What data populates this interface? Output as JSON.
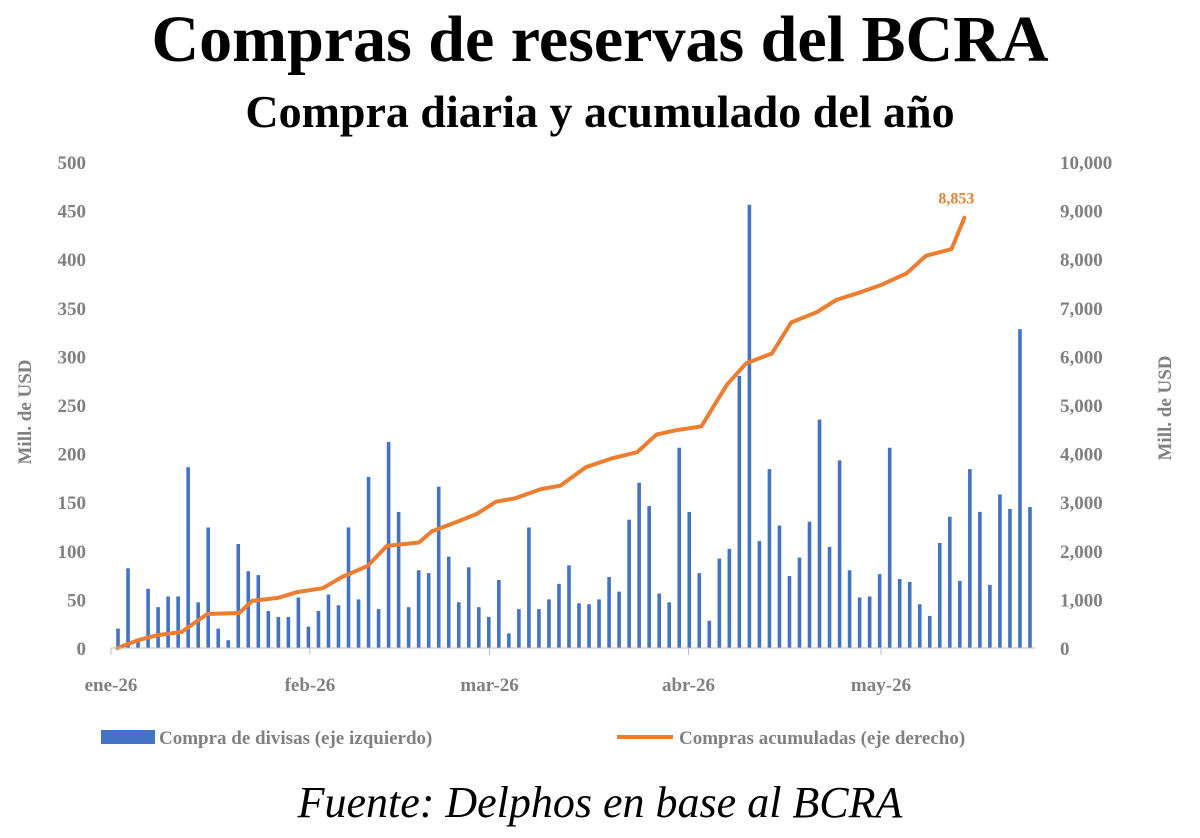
{
  "colors": {
    "bar": "#4472c4",
    "line": "#ed7d31",
    "axis_text": "#808080"
  },
  "chart_data": {
    "type": "bar",
    "title": "Compras de reservas del BCRA",
    "subtitle": "Compra diaria y acumulado del año",
    "source": "Fuente: Delphos en base al BCRA",
    "ylabel": "Mill. de USD",
    "y2label": "Mill. de USD",
    "ylim": [
      0,
      500
    ],
    "y2lim": [
      0,
      10000
    ],
    "y_ticks": [
      "0",
      "50",
      "100",
      "150",
      "200",
      "250",
      "300",
      "350",
      "400",
      "450",
      "500"
    ],
    "y2_ticks": [
      "0",
      "1,000",
      "2,000",
      "3,000",
      "4,000",
      "5,000",
      "6,000",
      "7,000",
      "8,000",
      "9,000",
      "10,000"
    ],
    "x_ticks": [
      "ene-26",
      "feb-26",
      "mar-26",
      "abr-26",
      "may-26"
    ],
    "grid": false,
    "legend_position": "bottom",
    "annotation": "8,853",
    "series": [
      {
        "name": "Compra de divisas (eje izquierdo)",
        "type": "bar",
        "axis": "left",
        "values": [
          20,
          82,
          8,
          61,
          42,
          53,
          53,
          186,
          47,
          124,
          20,
          8,
          107,
          79,
          75,
          38,
          32,
          32,
          52,
          22,
          38,
          55,
          44,
          124,
          50,
          176,
          40,
          212,
          140,
          42,
          80,
          77,
          166,
          94,
          47,
          83,
          42,
          32,
          70,
          15,
          40,
          124,
          40,
          50,
          66,
          85,
          46,
          45,
          50,
          73,
          58,
          132,
          170,
          146,
          56,
          47,
          206,
          140,
          77,
          28,
          92,
          102,
          280,
          456,
          110,
          184,
          126,
          74,
          93,
          130,
          235,
          104,
          193,
          80,
          52,
          53,
          76,
          206,
          71,
          68,
          45,
          33,
          108,
          135,
          69,
          184,
          140,
          65,
          158,
          143,
          328,
          145
        ]
      },
      {
        "name": "Compras acumuladas (eje derecho)",
        "type": "line",
        "axis": "right",
        "points": [
          [
            "2026-01-02",
            0
          ],
          [
            "2026-01-05",
            150
          ],
          [
            "2026-01-08",
            260
          ],
          [
            "2026-01-12",
            330
          ],
          [
            "2026-01-16",
            700
          ],
          [
            "2026-01-21",
            720
          ],
          [
            "2026-01-23",
            970
          ],
          [
            "2026-01-27",
            1030
          ],
          [
            "2026-01-30",
            1150
          ],
          [
            "2026-02-03",
            1230
          ],
          [
            "2026-02-06",
            1460
          ],
          [
            "2026-02-10",
            1690
          ],
          [
            "2026-02-13",
            2100
          ],
          [
            "2026-02-18",
            2170
          ],
          [
            "2026-02-20",
            2400
          ],
          [
            "2026-02-24",
            2600
          ],
          [
            "2026-02-27",
            2760
          ],
          [
            "2026-03-02",
            3010
          ],
          [
            "2026-03-05",
            3080
          ],
          [
            "2026-03-09",
            3270
          ],
          [
            "2026-03-12",
            3340
          ],
          [
            "2026-03-16",
            3720
          ],
          [
            "2026-03-20",
            3900
          ],
          [
            "2026-03-24",
            4030
          ],
          [
            "2026-03-27",
            4390
          ],
          [
            "2026-03-30",
            4480
          ],
          [
            "2026-04-03",
            4560
          ],
          [
            "2026-04-07",
            5420
          ],
          [
            "2026-04-10",
            5860
          ],
          [
            "2026-04-14",
            6060
          ],
          [
            "2026-04-17",
            6700
          ],
          [
            "2026-04-21",
            6910
          ],
          [
            "2026-04-24",
            7160
          ],
          [
            "2026-04-28",
            7330
          ],
          [
            "2026-05-01",
            7470
          ],
          [
            "2026-05-05",
            7710
          ],
          [
            "2026-05-08",
            8070
          ],
          [
            "2026-05-12",
            8210
          ],
          [
            "2026-05-14",
            8853
          ]
        ]
      }
    ]
  }
}
